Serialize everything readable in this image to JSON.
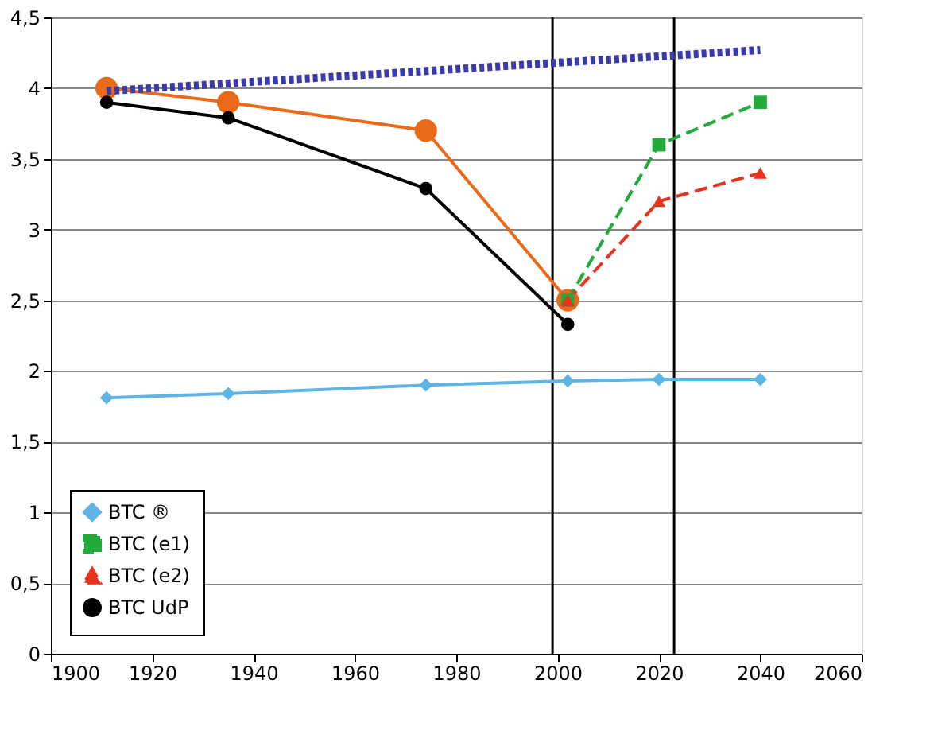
{
  "chart_data": {
    "type": "line",
    "xlim": [
      1900,
      2060
    ],
    "xticks": [
      1900,
      1920,
      1940,
      1960,
      1980,
      2000,
      2020,
      2040,
      2060
    ],
    "ylim": [
      0,
      4.5
    ],
    "yticks": [
      0,
      {
        "value": 0.5,
        "label": "0,5"
      },
      1,
      {
        "value": 1.5,
        "label": "1,5"
      },
      2,
      {
        "value": 2.5,
        "label": "2,5"
      },
      3,
      {
        "value": 3.5,
        "label": "3,5"
      },
      4,
      {
        "value": 4.5,
        "label": "4,5"
      }
    ],
    "grid": "y",
    "legend": "bottom left",
    "series": [
      {
        "name": "BTC ®",
        "color": "#5fb4e6",
        "marker": "diamond",
        "line_style": "solid",
        "x": [
          1911,
          1935,
          1974,
          2002,
          2020,
          2040
        ],
        "values": [
          1.81,
          1.84,
          1.9,
          1.93,
          1.94,
          1.94
        ]
      },
      {
        "name": "BTC (e1)",
        "color": "#22aa3a",
        "marker": "square",
        "line_style": "dashed",
        "x": [
          2002,
          2020,
          2040
        ],
        "values": [
          2.5,
          3.6,
          3.9
        ]
      },
      {
        "name": "BTC (e2)",
        "color": "#e8321e",
        "marker": "triangle",
        "line_style": "dashed",
        "x": [
          2002,
          2020,
          2040
        ],
        "values": [
          2.5,
          3.2,
          3.4
        ]
      },
      {
        "name": "BTC UdP",
        "color": "#000000",
        "marker": "circle",
        "line_style": "solid",
        "x": [
          1911,
          1935,
          1974,
          2002
        ],
        "values": [
          3.9,
          3.79,
          3.29,
          2.33
        ]
      },
      {
        "color": "#ea6a1a",
        "marker": "circle",
        "line_style": "solid",
        "x": [
          1911,
          1935,
          1974,
          2002
        ],
        "values": [
          4.0,
          3.9,
          3.7,
          2.5
        ]
      },
      {
        "color": "#3a3aaa",
        "marker": "none",
        "line_style": "dotted",
        "x": [
          1911,
          2040
        ],
        "values": [
          3.98,
          4.27
        ]
      }
    ],
    "ref_lines": [
      {
        "axis": "x",
        "value": 1999,
        "color": "#000000"
      },
      {
        "axis": "x",
        "value": 2023,
        "color": "#000000"
      }
    ]
  }
}
